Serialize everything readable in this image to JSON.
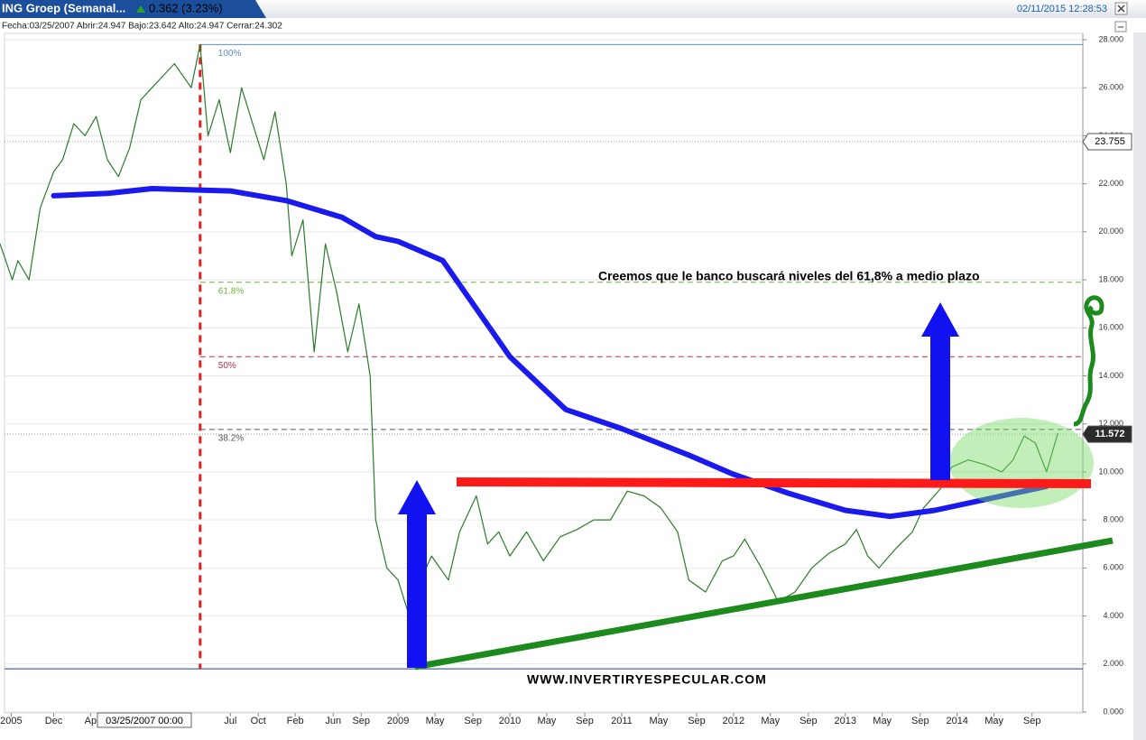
{
  "header": {
    "tab": "ING Groep (Semanal...",
    "change": "0.362 (3.23%)",
    "datetime": "02/11/2015 12:28:53",
    "info": "Fecha:03/25/2007 Abrir:24.947 Bajo:23.642 Alto:24.947 Cerrar:24.302"
  },
  "chart_data": {
    "type": "line",
    "annotation": "Creemos que le banco buscará niveles del 61,8% a medio plazo",
    "watermark": "WWW.INVERTIRYESPECULAR.COM",
    "crosshair_label": "03/25/2007 00:00",
    "xlim": [
      2005.44,
      2015.1
    ],
    "ylim": [
      0,
      28
    ],
    "xticks": [
      {
        "value": 2005.54,
        "label": "2005"
      },
      {
        "value": 2005.92,
        "label": "Dec"
      },
      {
        "value": 2006.25,
        "label": "Ap"
      },
      {
        "value": 2007.5,
        "label": "Jul"
      },
      {
        "value": 2007.75,
        "label": "Oct"
      },
      {
        "value": 2008.08,
        "label": "Feb"
      },
      {
        "value": 2008.42,
        "label": "Jun"
      },
      {
        "value": 2008.67,
        "label": "Sep"
      },
      2009,
      {
        "value": 2009.33,
        "label": "May"
      },
      {
        "value": 2009.67,
        "label": "Sep"
      },
      2010,
      {
        "value": 2010.33,
        "label": "May"
      },
      {
        "value": 2010.67,
        "label": "Sep"
      },
      2011,
      {
        "value": 2011.33,
        "label": "May"
      },
      {
        "value": 2011.67,
        "label": "Sep"
      },
      2012,
      {
        "value": 2012.33,
        "label": "May"
      },
      {
        "value": 2012.67,
        "label": "Sep"
      },
      2013,
      {
        "value": 2013.33,
        "label": "May"
      },
      {
        "value": 2013.67,
        "label": "Sep"
      },
      2014,
      {
        "value": 2014.33,
        "label": "May"
      },
      {
        "value": 2014.67,
        "label": "Sep"
      }
    ],
    "yticks": [
      {
        "value": 0,
        "label": "0.000"
      },
      {
        "value": 2,
        "label": "2.000"
      },
      {
        "value": 4,
        "label": "4.000"
      },
      {
        "value": 6,
        "label": "6.000"
      },
      {
        "value": 8,
        "label": "8.000"
      },
      {
        "value": 10,
        "label": "10.000"
      },
      {
        "value": 12,
        "label": "12.000"
      },
      {
        "value": 14,
        "label": "14.000"
      },
      {
        "value": 16,
        "label": "16.000"
      },
      {
        "value": 18,
        "label": "18.000"
      },
      {
        "value": 20,
        "label": "20.000"
      },
      {
        "value": 22,
        "label": "22.000"
      },
      {
        "value": 24,
        "label": "24.000"
      },
      {
        "value": 26,
        "label": "26.000"
      },
      {
        "value": 28,
        "label": "28.000"
      }
    ],
    "grid": true,
    "fib_levels": [
      {
        "name": "100%",
        "value": 27.8,
        "color": "#5b8fc7"
      },
      {
        "name": "61.8%",
        "value": 17.9,
        "color": "#6bb33a"
      },
      {
        "name": "50%",
        "value": 14.8,
        "color": "#b03050"
      },
      {
        "name": "38.2%",
        "value": 11.77,
        "color": "#555555"
      }
    ],
    "fib_base": 1.8,
    "markers": [
      {
        "value": 23.755,
        "dark": false
      },
      {
        "value": 11.572,
        "dark": true
      }
    ],
    "series": [
      {
        "color": "#2c7a2c",
        "width": 1.2,
        "x": [
          2005.44,
          2005.55,
          2005.6,
          2005.7,
          2005.8,
          2005.92,
          2006.0,
          2006.1,
          2006.2,
          2006.3,
          2006.4,
          2006.5,
          2006.6,
          2006.7,
          2006.8,
          2006.9,
          2007.0,
          2007.15,
          2007.23,
          2007.3,
          2007.4,
          2007.5,
          2007.6,
          2007.7,
          2007.8,
          2007.9,
          2008.0,
          2008.05,
          2008.15,
          2008.25,
          2008.35,
          2008.45,
          2008.55,
          2008.65,
          2008.75,
          2008.8,
          2008.9,
          2009.0,
          2009.1,
          2009.2,
          2009.3,
          2009.45,
          2009.55,
          2009.7,
          2009.8,
          2009.9,
          2010.0,
          2010.15,
          2010.3,
          2010.45,
          2010.6,
          2010.75,
          2010.9,
          2011.05,
          2011.2,
          2011.35,
          2011.5,
          2011.6,
          2011.75,
          2011.9,
          2012.0,
          2012.1,
          2012.25,
          2012.4,
          2012.55,
          2012.7,
          2012.85,
          2013.0,
          2013.1,
          2013.2,
          2013.3,
          2013.45,
          2013.6,
          2013.7,
          2013.85,
          2013.95,
          2014.1,
          2014.25,
          2014.4,
          2014.5,
          2014.6,
          2014.7,
          2014.8,
          2014.9
        ],
        "values": [
          19.5,
          18.0,
          18.8,
          18.0,
          21.0,
          22.5,
          23.0,
          24.5,
          24.0,
          24.8,
          23.0,
          22.3,
          23.5,
          25.5,
          26.0,
          26.5,
          27.0,
          26.0,
          27.8,
          24.0,
          25.5,
          23.3,
          26.0,
          24.5,
          23.0,
          25.0,
          22.0,
          19.0,
          20.5,
          15.0,
          19.5,
          17.5,
          15.0,
          17.0,
          14.0,
          8.0,
          6.0,
          5.5,
          4.0,
          5.5,
          6.5,
          5.5,
          7.5,
          9.0,
          7.0,
          7.5,
          6.5,
          7.5,
          6.3,
          7.3,
          7.6,
          8.0,
          8.0,
          9.2,
          9.0,
          8.5,
          7.5,
          5.5,
          5.0,
          6.3,
          6.5,
          7.2,
          6.0,
          4.6,
          5.0,
          6.0,
          6.6,
          7.0,
          7.6,
          6.5,
          6.0,
          6.8,
          7.5,
          8.5,
          9.3,
          10.2,
          10.5,
          10.3,
          10.0,
          10.5,
          11.5,
          11.2,
          10.0,
          11.6
        ]
      },
      {
        "color": "#1a1aee",
        "width": 6,
        "x": [
          2005.92,
          2006.4,
          2006.8,
          2007.5,
          2008.0,
          2008.5,
          2008.8,
          2009.0,
          2009.2,
          2009.4,
          2010.0,
          2010.5,
          2011.0,
          2011.6,
          2012.0,
          2012.5,
          2013.0,
          2013.4,
          2013.8,
          2014.3,
          2014.8
        ],
        "values": [
          21.5,
          21.6,
          21.8,
          21.7,
          21.3,
          20.6,
          19.8,
          19.6,
          19.2,
          18.8,
          14.8,
          12.6,
          11.8,
          10.7,
          9.9,
          9.1,
          8.4,
          8.15,
          8.4,
          8.9,
          9.4
        ]
      }
    ]
  }
}
